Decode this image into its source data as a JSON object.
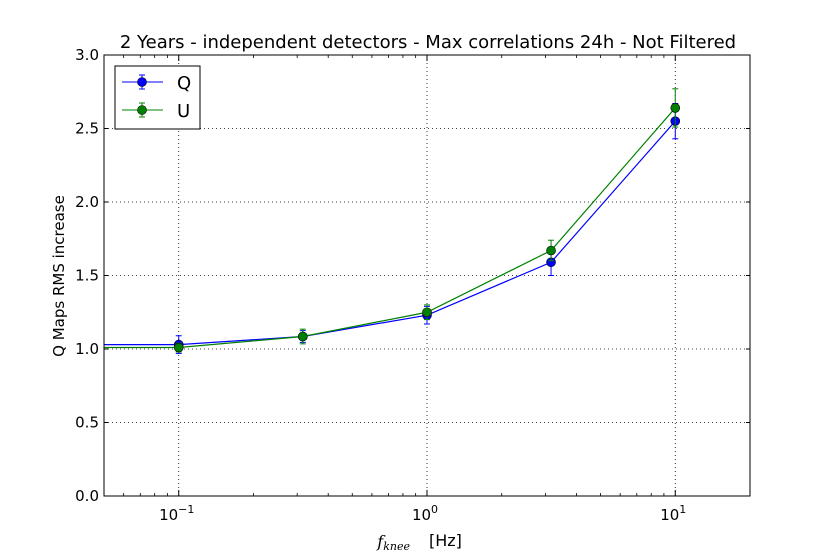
{
  "chart_data": {
    "type": "line",
    "title": "2 Years - independent detectors - Max correlations 24h - Not Filtered",
    "xlabel_symbol": "f",
    "xlabel_subscript": "knee",
    "xlabel_unit": "[Hz]",
    "ylabel": "Q Maps RMS increase",
    "x_scale": "log",
    "xlim": [
      0.05,
      20
    ],
    "ylim": [
      0.0,
      3.0
    ],
    "grid": true,
    "legend_position": "upper-left",
    "x_ticks": [
      {
        "value": 0.1,
        "base": "10",
        "exp": "−1"
      },
      {
        "value": 1,
        "base": "10",
        "exp": "0"
      },
      {
        "value": 10,
        "base": "10",
        "exp": "1"
      }
    ],
    "y_ticks": [
      "0.0",
      "0.5",
      "1.0",
      "1.5",
      "2.0",
      "2.5",
      "3.0"
    ],
    "series": [
      {
        "name": "Q",
        "color": "#0000ff",
        "x": [
          0.05,
          0.1,
          0.316,
          1,
          3.16,
          10
        ],
        "y": [
          1.03,
          1.03,
          1.085,
          1.23,
          1.59,
          2.55
        ],
        "err": [
          0,
          0.06,
          0.04,
          0.06,
          0.09,
          0.12
        ],
        "markers": [
          false,
          true,
          true,
          true,
          true,
          true
        ]
      },
      {
        "name": "U",
        "color": "#008000",
        "x": [
          0.05,
          0.1,
          0.316,
          1,
          3.16,
          10
        ],
        "y": [
          1.01,
          1.01,
          1.085,
          1.25,
          1.67,
          2.64
        ],
        "err": [
          0,
          0.03,
          0.05,
          0.05,
          0.07,
          0.13
        ],
        "markers": [
          false,
          true,
          true,
          true,
          true,
          true
        ]
      }
    ]
  }
}
